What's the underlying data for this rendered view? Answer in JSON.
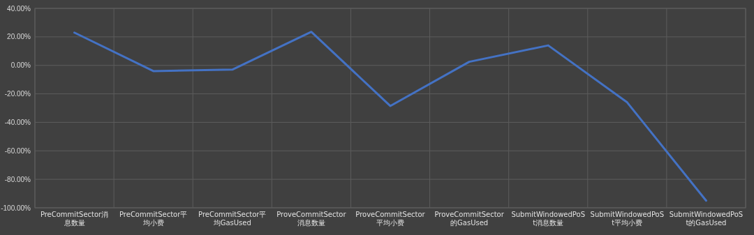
{
  "chart_data": {
    "type": "line",
    "categories": [
      "PreCommitSector消息数量",
      "PreCommitSector平均小费",
      "PreCommitSector平均GasUsed",
      "ProveCommitSector消息数量",
      "ProveCommitSector平均小费",
      "ProveCommitSector的GasUsed",
      "SubmitWindowedPoSt消息数量",
      "SubmitWindowedPoSt平均小费",
      "SubmitWindowedPoSt的GasUsed"
    ],
    "series": [
      {
        "color": "#4472c4",
        "values": [
          23,
          -4,
          -3,
          23.5,
          -28.5,
          2.5,
          14,
          -26,
          -95
        ]
      }
    ],
    "ylim": [
      -100,
      40
    ],
    "yticks": [
      {
        "value": 40,
        "label": "40.00%"
      },
      {
        "value": 20,
        "label": "20.00%"
      },
      {
        "value": 0,
        "label": "0.00%"
      },
      {
        "value": -20,
        "label": "-20.00%"
      },
      {
        "value": -40,
        "label": "-40.00%"
      },
      {
        "value": -60,
        "label": "-60.00%"
      },
      {
        "value": -80,
        "label": "-80.00%"
      },
      {
        "value": -100,
        "label": "-100.00%"
      }
    ],
    "grid": true,
    "marker": "none",
    "line_style": "solid"
  }
}
